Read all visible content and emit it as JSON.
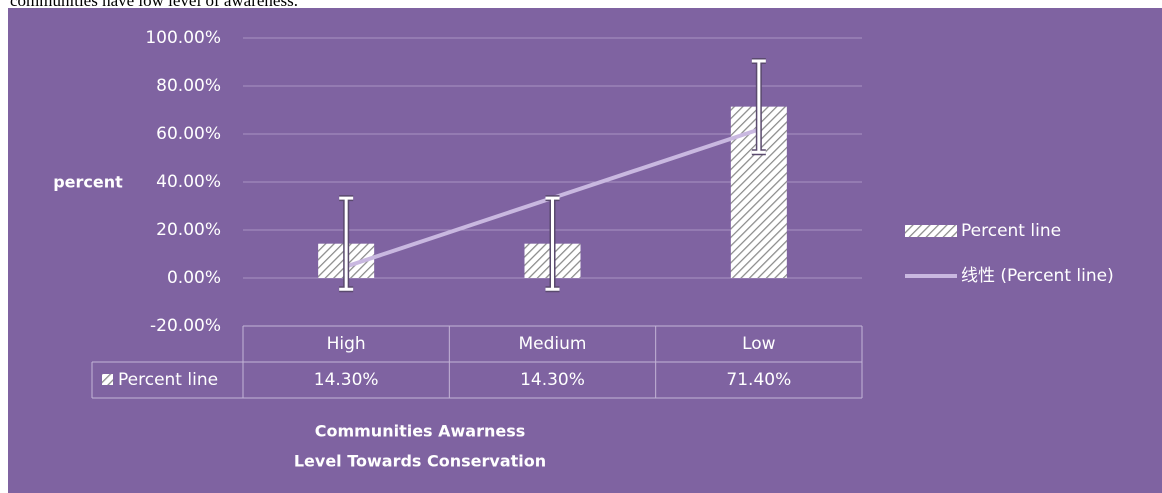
{
  "caption": "communities have low level of awareness.",
  "chart_data": {
    "type": "bar",
    "y_label": "percent",
    "x_label": [
      "Communities Awarness",
      "Level Towards Conservation"
    ],
    "categories": [
      "High",
      "Medium",
      "Low"
    ],
    "series": [
      {
        "name": "Percent line",
        "color": "#ffffff",
        "values": [
          14.3,
          14.3,
          71.4
        ],
        "value_labels": [
          "14.30%",
          "14.30%",
          "71.40%"
        ],
        "errors": [
          19,
          19,
          19
        ]
      }
    ],
    "trendline": {
      "name": "线性 (Percent line)",
      "color": "#c9b8e0",
      "type": "linear"
    },
    "ylim": [
      -20,
      100
    ],
    "yticks": [
      {
        "value": -20,
        "label": "-20.00%"
      },
      {
        "value": 0,
        "label": "0.00%"
      },
      {
        "value": 20,
        "label": "20.00%"
      },
      {
        "value": 40,
        "label": "40.00%"
      },
      {
        "value": 60,
        "label": "60.00%"
      },
      {
        "value": 80,
        "label": "80.00%"
      },
      {
        "value": 100,
        "label": "100.00%"
      }
    ],
    "grid": true,
    "data_table": true,
    "legend": "right",
    "background": "#7f63a1"
  }
}
